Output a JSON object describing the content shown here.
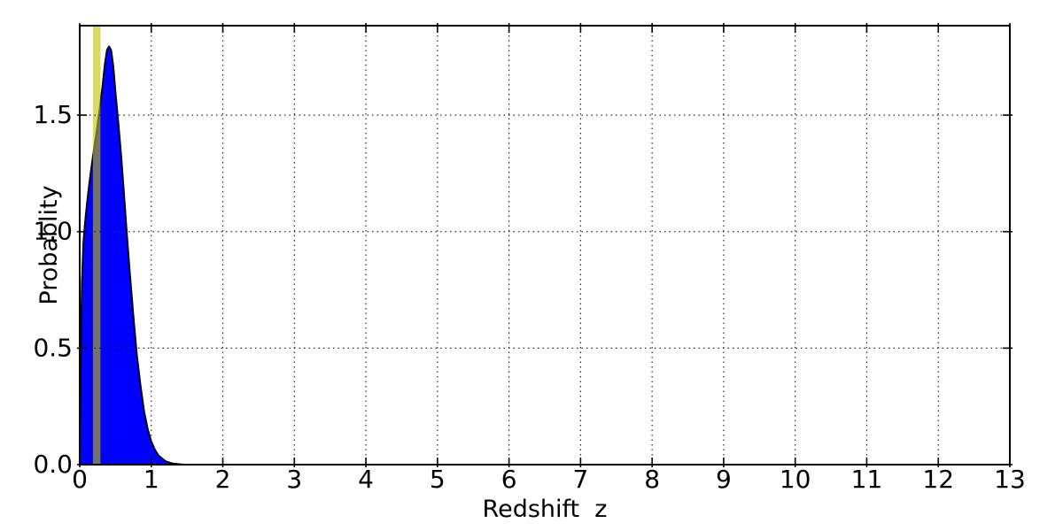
{
  "figure": {
    "background": "#ffffff",
    "plot_background": "#ffffff",
    "spine_color": "#000000"
  },
  "chart_data": {
    "type": "area",
    "title": "",
    "xlabel": "Redshift  z",
    "ylabel": "Probablity",
    "xlim": [
      0,
      13
    ],
    "ylim": [
      0,
      1.884
    ],
    "grid": true,
    "grid_style": "dotted",
    "x_tick_values": [
      0,
      1,
      2,
      3,
      4,
      5,
      6,
      7,
      8,
      9,
      10,
      11,
      12,
      13
    ],
    "x_tick_labels": [
      "0",
      "1",
      "2",
      "3",
      "4",
      "5",
      "6",
      "7",
      "8",
      "9",
      "10",
      "11",
      "12",
      "13"
    ],
    "y_tick_values": [
      0,
      0.5,
      1.0,
      1.5
    ],
    "y_tick_labels": [
      "0.0",
      "0.5",
      "1.0",
      "1.5"
    ],
    "series": [
      {
        "name": "pdf_curve",
        "fill_color": "#0000ff",
        "line_color": "#000000",
        "x": [
          0.0,
          0.01,
          0.02,
          0.03,
          0.05,
          0.07,
          0.1,
          0.13,
          0.16,
          0.2,
          0.24,
          0.28,
          0.32,
          0.35,
          0.38,
          0.41,
          0.44,
          0.47,
          0.5,
          0.54,
          0.58,
          0.62,
          0.66,
          0.7,
          0.75,
          0.8,
          0.85,
          0.9,
          0.95,
          1.0,
          1.05,
          1.1,
          1.2,
          1.3,
          1.4,
          1.5
        ],
        "y": [
          0.0,
          0.3,
          0.6,
          0.78,
          0.95,
          1.03,
          1.12,
          1.2,
          1.27,
          1.36,
          1.44,
          1.53,
          1.63,
          1.72,
          1.78,
          1.795,
          1.78,
          1.71,
          1.6,
          1.47,
          1.33,
          1.16,
          0.99,
          0.83,
          0.64,
          0.47,
          0.34,
          0.23,
          0.155,
          0.1,
          0.065,
          0.04,
          0.015,
          0.005,
          0.002,
          0.0
        ]
      }
    ],
    "highlight_band": {
      "x0": 0.185,
      "x1": 0.29,
      "color": "#bfbf00",
      "alpha": 0.6
    },
    "peak": {
      "x": 0.41,
      "y": 1.795
    }
  }
}
